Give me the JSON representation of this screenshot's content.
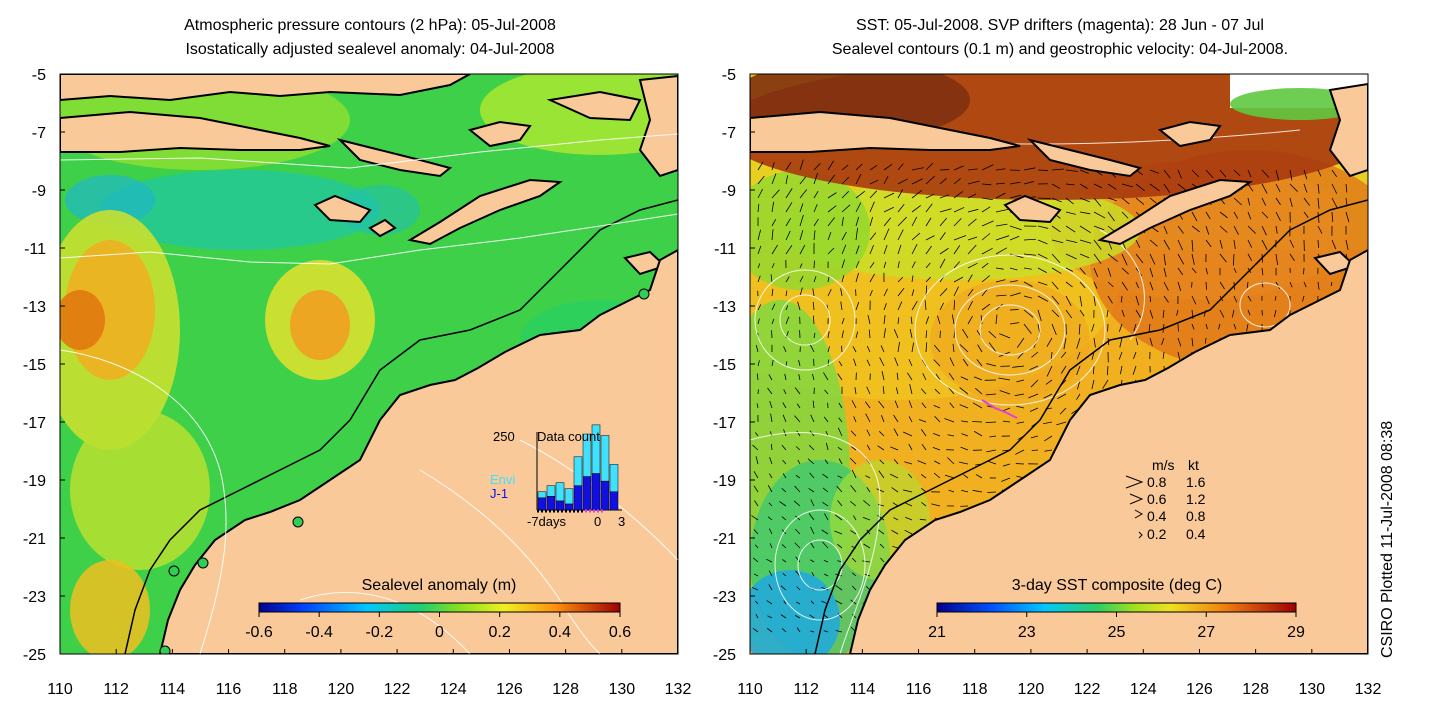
{
  "left_panel": {
    "title_line1": "Atmospheric pressure contours (2 hPa): 05-Jul-2008",
    "title_line2": "Isostatically adjusted sealevel anomaly: 04-Jul-2008",
    "colorbar": {
      "label": "Sealevel anomaly (m)",
      "ticks": [
        "-0.6",
        "-0.4",
        "-0.2",
        "0",
        "0.2",
        "0.4",
        "0.6"
      ]
    },
    "data_count_inset": {
      "title": "Data count",
      "ymax_label": "250",
      "series_labels": [
        {
          "name": "Envi",
          "color": "#40e0ff"
        },
        {
          "name": "J-1",
          "color": "#1010e0"
        }
      ],
      "x_labels": [
        "-7days",
        "0",
        "3"
      ],
      "envi_counts": [
        20,
        35,
        60,
        50,
        95,
        140,
        160,
        150,
        90
      ],
      "j1_counts": [
        40,
        45,
        30,
        20,
        80,
        110,
        120,
        95,
        60
      ]
    }
  },
  "right_panel": {
    "title_line1": "SST: 05-Jul-2008. SVP drifters (magenta): 28 Jun - 07 Jul",
    "title_line2": "Sealevel contours (0.1 m) and geostrophic velocity: 04-Jul-2008.",
    "colorbar": {
      "label": "3-day SST composite (deg C)",
      "ticks": [
        "21",
        "23",
        "25",
        "27",
        "29"
      ]
    },
    "velocity_legend": {
      "header_ms": "m/s",
      "header_kt": "kt",
      "rows": [
        {
          "ms": "0.8",
          "kt": "1.6"
        },
        {
          "ms": "0.6",
          "kt": "1.2"
        },
        {
          "ms": "0.4",
          "kt": "0.8"
        },
        {
          "ms": "0.2",
          "kt": "0.4"
        }
      ]
    }
  },
  "axes": {
    "y_ticks": [
      "-5",
      "-7",
      "-9",
      "-11",
      "-13",
      "-15",
      "-17",
      "-19",
      "-21",
      "-23",
      "-25"
    ],
    "x_ticks": [
      "110",
      "112",
      "114",
      "116",
      "118",
      "120",
      "122",
      "124",
      "126",
      "128",
      "130",
      "132"
    ],
    "lat_range": [
      -25,
      -5
    ],
    "lon_range": [
      110,
      132
    ]
  },
  "credit": "CSIRO Plotted 11-Jul-2008 08:38",
  "colors": {
    "land": "#f9c99a",
    "coast": "#000000",
    "drifter": "#e040e0",
    "contour": "#ffffff",
    "station": "#33cc55"
  }
}
